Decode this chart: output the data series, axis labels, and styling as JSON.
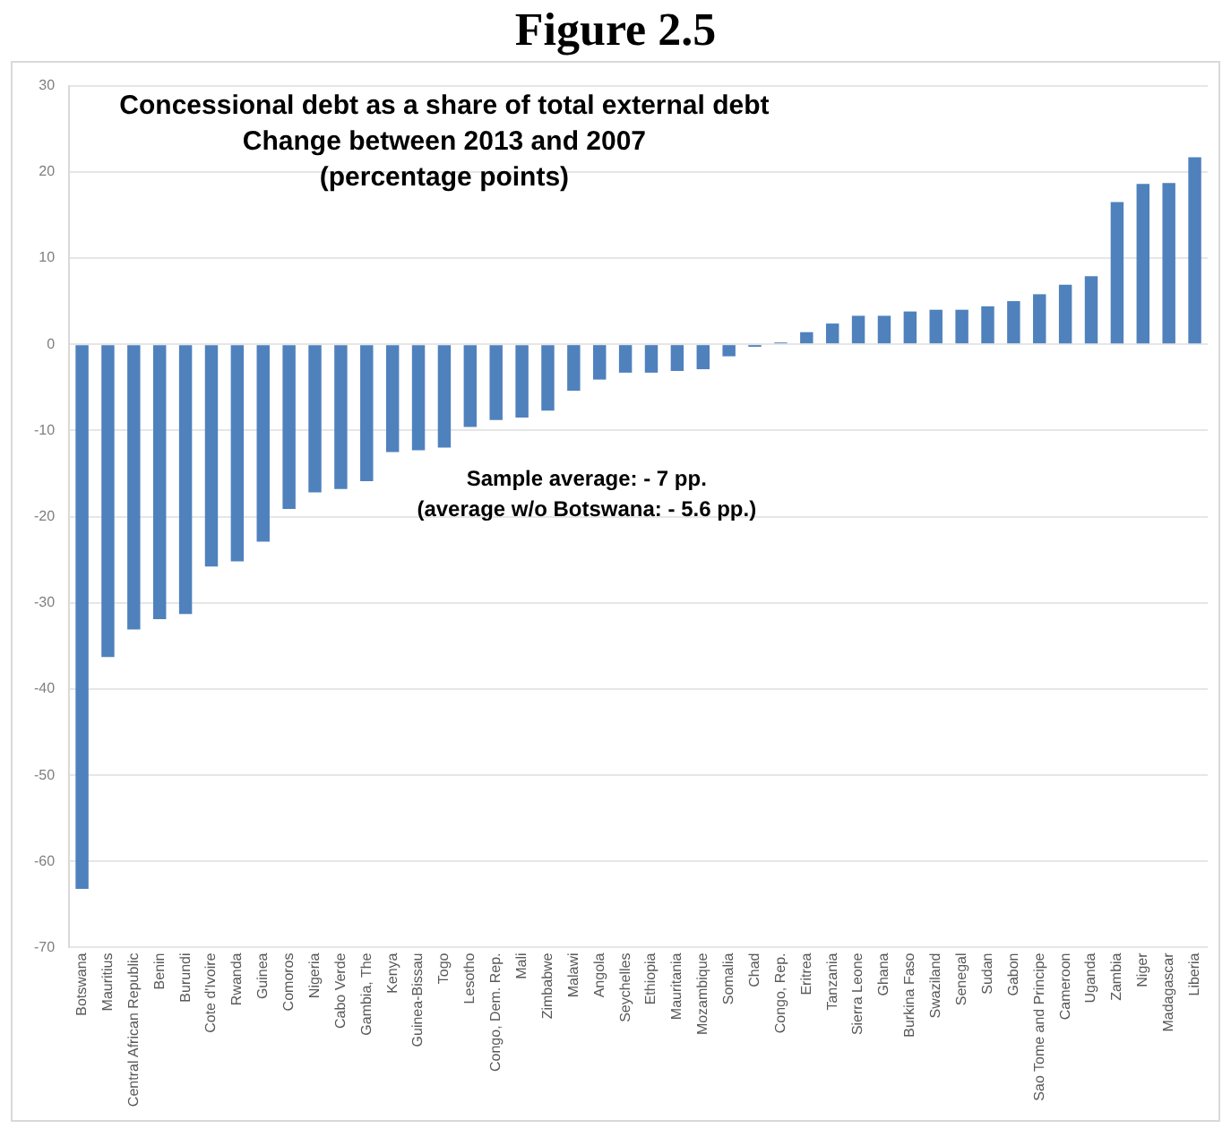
{
  "chart_data": {
    "type": "bar",
    "title": "Concessional debt as a share of total external debt",
    "subtitle": "Change between 2013 and 2007\n(percentage points)",
    "annotations": [
      "Figure 2.5",
      "Sample average: - 7 pp.",
      "(average w/o Botswana: - 5.6 pp.)"
    ],
    "categories": [
      "Botswana",
      "Mauritius",
      "Central African Republic",
      "Benin",
      "Burundi",
      "Cote d'Ivoire",
      "Rwanda",
      "Guinea",
      "Comoros",
      "Nigeria",
      "Cabo Verde",
      "Gambia, The",
      "Kenya",
      "Guinea-Bissau",
      "Togo",
      "Lesotho",
      "Congo, Dem. Rep.",
      "Mali",
      "Zimbabwe",
      "Malawi",
      "Angola",
      "Seychelles",
      "Ethiopia",
      "Mauritania",
      "Mozambique",
      "Somalia",
      "Chad",
      "Congo, Rep.",
      "Eritrea",
      "Tanzania",
      "Sierra Leone",
      "Ghana",
      "Burkina Faso",
      "Swaziland",
      "Senegal",
      "Sudan",
      "Gabon",
      "Sao Tome and Principe",
      "Cameroon",
      "Uganda",
      "Zambia",
      "Niger",
      "Madagascar",
      "Liberia"
    ],
    "values": [
      -63.2,
      -36.3,
      -33.1,
      -31.9,
      -31.3,
      -25.8,
      -25.2,
      -22.9,
      -19.1,
      -17.2,
      -16.8,
      -15.9,
      -12.5,
      -12.3,
      -12.0,
      -9.6,
      -8.8,
      -8.5,
      -7.7,
      -5.4,
      -4.1,
      -3.3,
      -3.3,
      -3.1,
      -2.9,
      -1.4,
      -0.3,
      0.2,
      1.4,
      2.4,
      3.3,
      3.3,
      3.8,
      4.0,
      4.0,
      4.4,
      5.0,
      5.8,
      6.9,
      7.9,
      16.5,
      18.6,
      18.7,
      21.7
    ],
    "color": "#4f81bd",
    "ylim": [
      -70,
      30
    ],
    "yticks": [
      -70,
      -60,
      -50,
      -40,
      -30,
      -20,
      -10,
      0,
      10,
      20,
      30
    ],
    "grid": "y",
    "legend": false
  }
}
